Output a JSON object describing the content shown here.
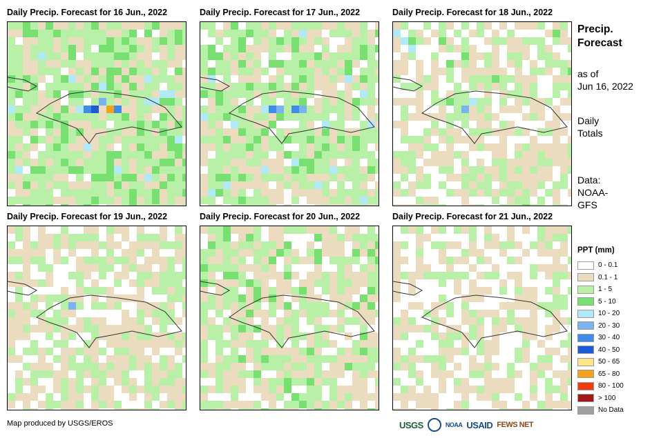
{
  "panels": [
    {
      "title": "Daily Precip. Forecast for 16 Jun., 2022"
    },
    {
      "title": "Daily Precip. Forecast for 17 Jun., 2022"
    },
    {
      "title": "Daily Precip. Forecast for 18 Jun., 2022"
    },
    {
      "title": "Daily Precip. Forecast for 19 Jun., 2022"
    },
    {
      "title": "Daily Precip. Forecast for 20 Jun., 2022"
    },
    {
      "title": "Daily Precip. Forecast for 21 Jun., 2022"
    }
  ],
  "side": {
    "title_line1": "Precip.",
    "title_line2": "Forecast",
    "asof_line1": "as of",
    "asof_line2": "Jun 16, 2022",
    "daily_line1": "Daily",
    "daily_line2": "Totals",
    "data_line1": "Data:",
    "data_line2": "NOAA-",
    "data_line3": "GFS"
  },
  "legend": {
    "title": "PPT (mm)",
    "items": [
      {
        "label": "0 - 0.1",
        "color": "#ffffff"
      },
      {
        "label": "0.1 - 1",
        "color": "#ecdcbf"
      },
      {
        "label": "1 - 5",
        "color": "#b8f0a8"
      },
      {
        "label": "5 - 10",
        "color": "#78e070"
      },
      {
        "label": "10 - 20",
        "color": "#b0eaf8"
      },
      {
        "label": "20 - 30",
        "color": "#78b4f0"
      },
      {
        "label": "30 - 40",
        "color": "#3c8ce8"
      },
      {
        "label": "40 - 50",
        "color": "#1e5ad8"
      },
      {
        "label": "50 - 65",
        "color": "#fde68a"
      },
      {
        "label": "65 - 80",
        "color": "#f5a21b"
      },
      {
        "label": "80 - 100",
        "color": "#f23c0c"
      },
      {
        "label": "> 100",
        "color": "#a01818"
      },
      {
        "label": "No Data",
        "color": "#a0a0a0"
      }
    ]
  },
  "credit": "Map produced by USGS/EROS",
  "logos": [
    "USGS",
    "NOAA",
    "USAID",
    "FEWS NET"
  ]
}
